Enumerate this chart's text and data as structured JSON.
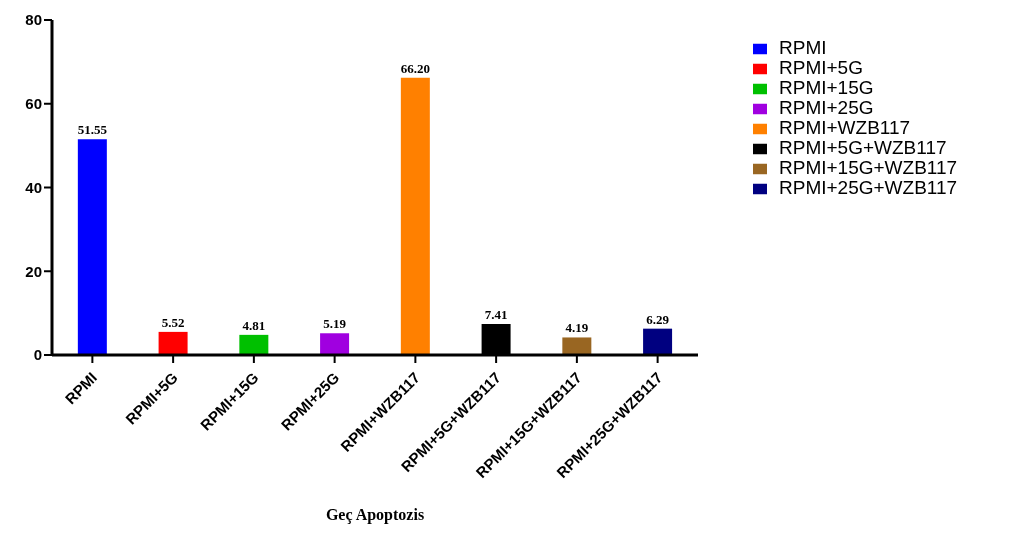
{
  "chart_data": {
    "type": "bar",
    "xlabel": "Geç Apoptozis",
    "categories": [
      "RPMI",
      "RPMI+5G",
      "RPMI+15G",
      "RPMI+25G",
      "RPMI+WZB117",
      "RPMI+5G+WZB117",
      "RPMI+15G+WZB117",
      "RPMI+25G+WZB117"
    ],
    "stacked": true,
    "series": [
      {
        "name": "RPMI",
        "color": "#0000ff",
        "values": [
          51.55,
          null,
          null,
          null,
          null,
          null,
          null,
          null
        ],
        "value_labels": [
          "51.55",
          null,
          null,
          null,
          null,
          null,
          null,
          null
        ]
      },
      {
        "name": "RPMI+5G",
        "color": "#ff0000",
        "values": [
          null,
          5.52,
          null,
          null,
          null,
          null,
          null,
          null
        ],
        "value_labels": [
          null,
          "5.52",
          null,
          null,
          null,
          null,
          null,
          null
        ]
      },
      {
        "name": "RPMI+15G",
        "color": "#00c000",
        "values": [
          null,
          null,
          4.81,
          null,
          null,
          null,
          null,
          null
        ],
        "value_labels": [
          null,
          null,
          "4.81",
          null,
          null,
          null,
          null,
          null
        ]
      },
      {
        "name": "RPMI+25G",
        "color": "#a000e0",
        "values": [
          null,
          null,
          null,
          5.19,
          null,
          null,
          null,
          null
        ],
        "value_labels": [
          null,
          null,
          null,
          "5.19",
          null,
          null,
          null,
          null
        ]
      },
      {
        "name": "RPMI+WZB117",
        "color": "#ff8000",
        "values": [
          null,
          null,
          null,
          null,
          66.2,
          null,
          null,
          null
        ],
        "value_labels": [
          null,
          null,
          null,
          null,
          "66.20",
          null,
          null,
          null
        ]
      },
      {
        "name": "RPMI+5G+WZB117",
        "color": "#000000",
        "values": [
          null,
          null,
          null,
          null,
          null,
          7.41,
          null,
          null
        ],
        "value_labels": [
          null,
          null,
          null,
          null,
          null,
          "7.41",
          null,
          null
        ]
      },
      {
        "name": "RPMI+15G+WZB117",
        "color": "#996622",
        "values": [
          null,
          null,
          null,
          null,
          null,
          null,
          4.19,
          null
        ],
        "value_labels": [
          null,
          null,
          null,
          null,
          null,
          null,
          "4.19",
          null
        ]
      },
      {
        "name": "RPMI+25G+WZB117",
        "color": "#000080",
        "values": [
          null,
          null,
          null,
          null,
          null,
          null,
          null,
          6.29
        ],
        "value_labels": [
          null,
          null,
          null,
          null,
          null,
          null,
          null,
          "6.29"
        ]
      }
    ],
    "ylim": [
      0,
      80
    ],
    "yticks": [
      0,
      20,
      40,
      60,
      80
    ],
    "grid": false,
    "legend": "right"
  }
}
